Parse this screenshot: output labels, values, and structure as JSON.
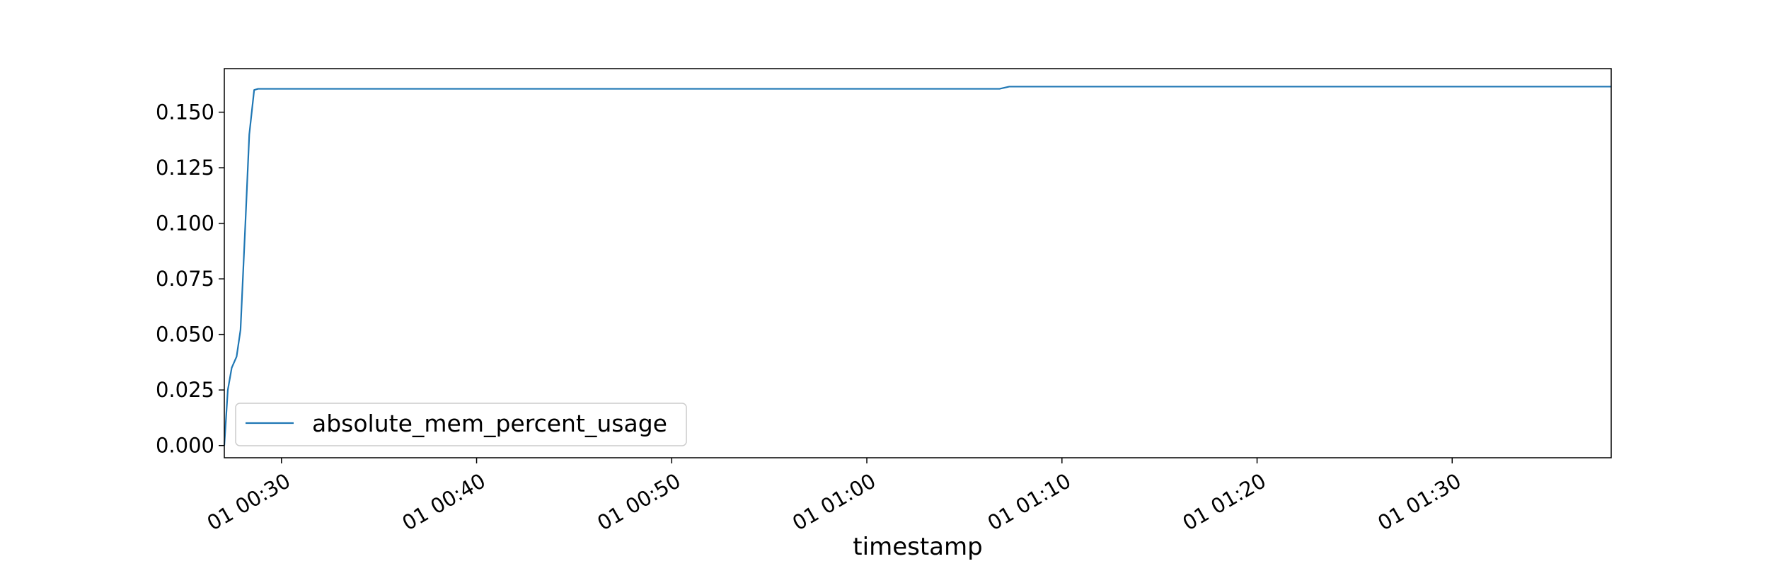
{
  "chart_data": {
    "type": "line",
    "title": "",
    "xlabel": "timestamp",
    "ylabel": "",
    "ylim": [
      -0.0055,
      0.1696
    ],
    "xlim_minutes": [
      -2.93,
      68.15
    ],
    "yticks": [
      0.0,
      0.025,
      0.05,
      0.075,
      0.1,
      0.125,
      0.15
    ],
    "ytick_labels": [
      "0.000",
      "0.025",
      "0.050",
      "0.075",
      "0.100",
      "0.125",
      "0.150"
    ],
    "xticks_minutes": [
      0,
      10,
      20,
      30,
      40,
      50,
      60
    ],
    "xtick_labels": [
      "01 00:30",
      "01 00:40",
      "01 00:50",
      "01 01:00",
      "01 01:10",
      "01 01:20",
      "01 01:30"
    ],
    "x_origin": "01 00:30",
    "grid": false,
    "legend": {
      "location": "lower-left"
    },
    "colors": {
      "series": "#1f77b4",
      "axes": "#000000",
      "background": "#ffffff"
    },
    "series": [
      {
        "name": "absolute_mem_percent_usage",
        "x_minutes": [
          -2.93,
          -2.75,
          -2.55,
          -2.3,
          -2.1,
          -1.85,
          -1.65,
          -1.4,
          -1.2,
          -1.0,
          0.0,
          10.0,
          20.0,
          30.0,
          36.0,
          36.8,
          37.3,
          40.0,
          50.0,
          60.0,
          68.15
        ],
        "values": [
          0.0,
          0.025,
          0.035,
          0.04,
          0.052,
          0.1,
          0.14,
          0.16,
          0.1605,
          0.1605,
          0.1605,
          0.1605,
          0.1605,
          0.1605,
          0.1605,
          0.1605,
          0.1615,
          0.1615,
          0.1615,
          0.1615,
          0.1615
        ]
      }
    ]
  }
}
